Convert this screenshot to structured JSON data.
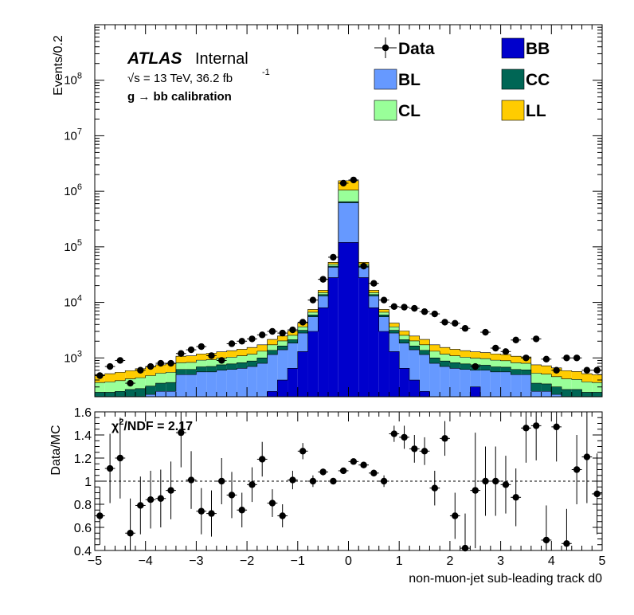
{
  "chart_data": [
    {
      "panel": "main",
      "type": "bar",
      "stacked": true,
      "log_scale_y": true,
      "ylabel": "Events/0.2",
      "ylim": [
        200,
        1000000000
      ],
      "xlim": [
        -5,
        5
      ],
      "bin_width": 0.2,
      "y_tick_labels": [
        "10",
        "10",
        "10",
        "10",
        "10",
        "10",
        "10"
      ],
      "y_tick_exponents": [
        "3",
        "4",
        "5",
        "6",
        "7",
        "8",
        ""
      ],
      "y_tick_values": [
        1000,
        10000,
        100000,
        1000000,
        10000000,
        100000000
      ],
      "annotations": {
        "atlas": "ATLAS",
        "internal": "Internal",
        "sqrt_s": "√s = 13 TeV, 36.2 fb",
        "lumi_exp": "-1",
        "calibration": "g  → bb calibration"
      },
      "legend_placement": "top-right",
      "legend": [
        {
          "name": "Data",
          "kind": "marker"
        },
        {
          "name": "BB",
          "color": "#0000cc"
        },
        {
          "name": "BL",
          "color": "#6699ff"
        },
        {
          "name": "CC",
          "color": "#006655"
        },
        {
          "name": "CL",
          "color": "#99ff99"
        },
        {
          "name": "LL",
          "color": "#ffcc00"
        }
      ],
      "bin_centers": [
        -4.9,
        -4.7,
        -4.5,
        -4.3,
        -4.1,
        -3.9,
        -3.7,
        -3.5,
        -3.3,
        -3.1,
        -2.9,
        -2.7,
        -2.5,
        -2.3,
        -2.1,
        -1.9,
        -1.7,
        -1.5,
        -1.3,
        -1.1,
        -0.9,
        -0.7,
        -0.5,
        -0.3,
        -0.1,
        0.1,
        0.3,
        0.5,
        0.7,
        0.9,
        1.1,
        1.3,
        1.5,
        1.7,
        1.9,
        2.1,
        2.3,
        2.5,
        2.7,
        2.9,
        3.1,
        3.3,
        3.5,
        3.7,
        3.9,
        4.1,
        4.3,
        4.5,
        4.7,
        4.9
      ],
      "series": [
        {
          "name": "BB",
          "color": "#0000cc",
          "values": [
            0,
            0,
            0,
            0,
            0,
            0,
            0,
            0,
            0,
            0,
            0,
            0,
            0,
            0,
            0,
            0,
            0,
            250,
            400,
            650,
            1300,
            3000,
            8000,
            28000,
            120000,
            120000,
            28000,
            8000,
            3000,
            1300,
            650,
            400,
            250,
            0,
            0,
            0,
            0,
            300,
            0,
            0,
            0,
            0,
            0,
            0,
            0,
            0,
            0,
            0,
            0,
            0
          ]
        },
        {
          "name": "BL",
          "color": "#6699ff",
          "values": [
            180,
            180,
            180,
            200,
            200,
            220,
            250,
            250,
            500,
            500,
            560,
            560,
            600,
            620,
            650,
            700,
            800,
            900,
            1000,
            1200,
            1500,
            2500,
            5000,
            15000,
            500000,
            500000,
            15000,
            5000,
            2500,
            1500,
            1200,
            1000,
            900,
            800,
            700,
            650,
            620,
            300,
            600,
            560,
            560,
            500,
            500,
            250,
            250,
            220,
            200,
            200,
            180,
            180
          ]
        },
        {
          "name": "CC",
          "color": "#006655",
          "values": [
            60,
            60,
            70,
            70,
            80,
            90,
            100,
            110,
            120,
            120,
            130,
            140,
            150,
            160,
            170,
            180,
            200,
            220,
            240,
            280,
            330,
            450,
            800,
            2000,
            30000,
            30000,
            2000,
            800,
            450,
            330,
            280,
            240,
            220,
            200,
            180,
            170,
            160,
            150,
            140,
            130,
            120,
            120,
            110,
            100,
            90,
            80,
            70,
            70,
            60,
            60
          ]
        },
        {
          "name": "CL",
          "color": "#99ff99",
          "values": [
            120,
            130,
            140,
            150,
            160,
            170,
            180,
            190,
            200,
            210,
            220,
            230,
            240,
            250,
            270,
            290,
            320,
            350,
            380,
            420,
            500,
            700,
            1200,
            3500,
            400000,
            400000,
            3500,
            1200,
            700,
            500,
            420,
            380,
            350,
            320,
            290,
            270,
            250,
            240,
            230,
            220,
            210,
            200,
            190,
            180,
            170,
            160,
            150,
            140,
            130,
            120
          ]
        },
        {
          "name": "LL",
          "color": "#ffcc00",
          "values": [
            140,
            150,
            160,
            170,
            200,
            210,
            220,
            240,
            250,
            260,
            270,
            280,
            300,
            320,
            340,
            370,
            400,
            430,
            460,
            500,
            600,
            800,
            1500,
            4000,
            500000,
            500000,
            4000,
            1500,
            800,
            600,
            500,
            460,
            430,
            400,
            370,
            340,
            320,
            300,
            280,
            270,
            260,
            250,
            240,
            220,
            210,
            200,
            170,
            160,
            150,
            140
          ]
        },
        {
          "name": "Data",
          "kind": "marker",
          "values": [
            480,
            700,
            900,
            350,
            600,
            700,
            800,
            800,
            1200,
            1400,
            1600,
            1100,
            900,
            1800,
            2000,
            2200,
            2600,
            3000,
            2800,
            3200,
            4400,
            11000,
            26000,
            65000,
            1400000,
            1600000,
            45000,
            22000,
            11000,
            8400,
            8200,
            7800,
            6800,
            6200,
            4400,
            4200,
            3400,
            700,
            2900,
            1500,
            1300,
            2100,
            1000,
            2200,
            950,
            600,
            1000,
            1000,
            600,
            600
          ]
        }
      ]
    },
    {
      "panel": "ratio",
      "type": "scatter",
      "ylabel": "Data/MC",
      "xlabel": "non-muon-jet sub-leading track d0",
      "ylim": [
        0.4,
        1.6
      ],
      "xlim": [
        -5,
        5
      ],
      "reference_line": 1,
      "annotation": "χ²/NDF = 2.17",
      "chi2_base": "χ",
      "chi2_sup": "2",
      "chi2_rest": "/NDF = 2.17",
      "x_tick_labels": [
        "−5",
        "−4",
        "−3",
        "−2",
        "−1",
        "0",
        "1",
        "2",
        "3",
        "4",
        "5"
      ],
      "y_tick_labels": [
        "0.4",
        "0.6",
        "0.8",
        "1",
        "1.2",
        "1.4",
        "1.6"
      ],
      "x": [
        -4.9,
        -4.7,
        -4.5,
        -4.3,
        -4.1,
        -3.9,
        -3.7,
        -3.5,
        -3.3,
        -3.1,
        -2.9,
        -2.7,
        -2.5,
        -2.3,
        -2.1,
        -1.9,
        -1.7,
        -1.5,
        -1.3,
        -1.1,
        -0.9,
        -0.7,
        -0.5,
        -0.3,
        -0.1,
        0.1,
        0.3,
        0.5,
        0.7,
        0.9,
        1.1,
        1.3,
        1.5,
        1.7,
        1.9,
        2.1,
        2.3,
        2.5,
        2.7,
        2.9,
        3.1,
        3.3,
        3.5,
        3.7,
        3.9,
        4.1,
        4.3,
        4.5,
        4.7,
        4.9
      ],
      "y": [
        0.7,
        1.11,
        1.2,
        0.55,
        0.79,
        0.84,
        0.85,
        0.92,
        1.42,
        1.01,
        0.74,
        0.72,
        1.0,
        0.88,
        0.75,
        0.97,
        1.19,
        0.81,
        0.7,
        1.01,
        1.26,
        1.0,
        1.08,
        1.0,
        1.09,
        1.17,
        1.14,
        1.07,
        1.0,
        1.41,
        1.38,
        1.28,
        1.26,
        0.94,
        1.37,
        0.7,
        0.42,
        0.92,
        1.0,
        1.0,
        0.97,
        0.86,
        1.46,
        1.48,
        0.49,
        1.47,
        0.46,
        1.1,
        1.21,
        0.89
      ],
      "yerr": [
        0.25,
        0.3,
        0.35,
        0.3,
        0.25,
        0.25,
        0.25,
        0.25,
        0.3,
        0.25,
        0.2,
        0.2,
        0.2,
        0.2,
        0.15,
        0.15,
        0.15,
        0.12,
        0.1,
        0.08,
        0.07,
        0.05,
        0.03,
        0.02,
        0.01,
        0.01,
        0.02,
        0.03,
        0.05,
        0.07,
        0.1,
        0.12,
        0.12,
        0.15,
        0.15,
        0.2,
        0.3,
        0.5,
        0.3,
        0.3,
        0.25,
        0.25,
        0.3,
        0.3,
        0.3,
        0.3,
        0.3,
        0.3,
        0.4,
        0.35
      ]
    }
  ]
}
